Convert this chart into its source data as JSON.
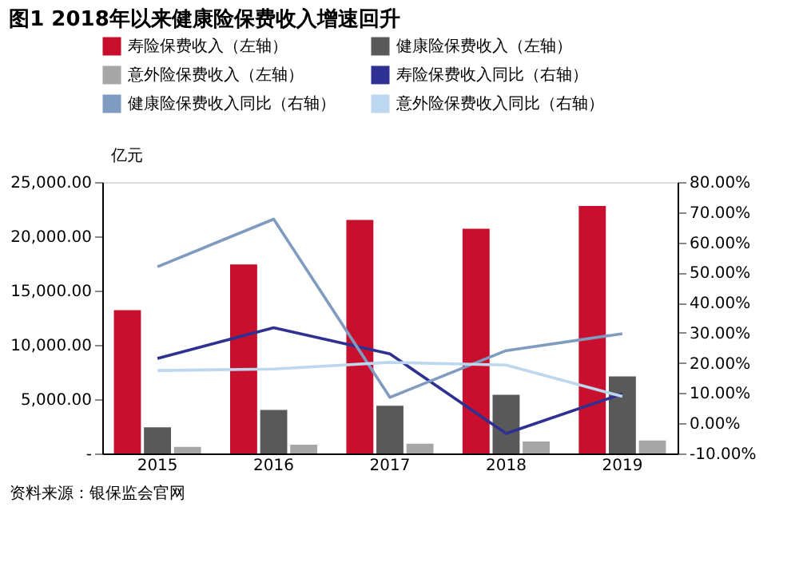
{
  "chart_data": {
    "type": "bar",
    "title": "图1  2018年以来健康险保费收入增速回升",
    "ylabel": "亿元",
    "categories": [
      "2015",
      "2016",
      "2017",
      "2018",
      "2019"
    ],
    "series": [
      {
        "name": "寿险保费收入（左轴）",
        "axis": "y",
        "color": "#c8102e",
        "values": [
          13200,
          17400,
          21500,
          20700,
          22800
        ]
      },
      {
        "name": "健康险保费收入（左轴）",
        "axis": "y",
        "color": "#595959",
        "values": [
          2400,
          4000,
          4400,
          5400,
          7100
        ]
      },
      {
        "name": "意外险保费收入（左轴）",
        "axis": "y",
        "color": "#a6a6a6",
        "values": [
          600,
          800,
          900,
          1100,
          1200
        ]
      },
      {
        "name": "寿险保费收入同比（右轴）",
        "type": "line",
        "axis": "y2",
        "color": "#2e3192",
        "values": [
          21.5,
          31.7,
          23.0,
          -3.4,
          9.8
        ]
      },
      {
        "name": "健康险保费收入同比（右轴）",
        "type": "line",
        "axis": "y2",
        "color": "#7f9cc0",
        "values": [
          51.9,
          67.7,
          8.6,
          24.1,
          29.7
        ]
      },
      {
        "name": "意外险保费收入同比（右轴）",
        "type": "line",
        "axis": "y2",
        "color": "#bdd7ee",
        "values": [
          17.5,
          18.0,
          20.2,
          19.3,
          8.9
        ]
      }
    ],
    "ylim": [
      0,
      25000
    ],
    "yticks": [
      {
        "value": 0,
        "label": "-"
      },
      {
        "value": 5000,
        "label": "5,000.00"
      },
      {
        "value": 10000,
        "label": "10,000.00"
      },
      {
        "value": 15000,
        "label": "15,000.00"
      },
      {
        "value": 20000,
        "label": "20,000.00"
      },
      {
        "value": 25000,
        "label": "25,000.00"
      }
    ],
    "y2lim": [
      -10,
      80
    ],
    "y2ticks": [
      {
        "value": -10,
        "label": "-10.00%"
      },
      {
        "value": 0,
        "label": "0.00%"
      },
      {
        "value": 10,
        "label": "10.00%"
      },
      {
        "value": 20,
        "label": "20.00%"
      },
      {
        "value": 30,
        "label": "30.00%"
      },
      {
        "value": 40,
        "label": "40.00%"
      },
      {
        "value": 50,
        "label": "50.00%"
      },
      {
        "value": 60,
        "label": "60.00%"
      },
      {
        "value": 70,
        "label": "70.00%"
      },
      {
        "value": 80,
        "label": "80.00%"
      }
    ],
    "grid": false,
    "legend": "top",
    "marker": "none",
    "line_style": "solid",
    "annotations": [
      "资料来源：银保监会官网"
    ]
  }
}
